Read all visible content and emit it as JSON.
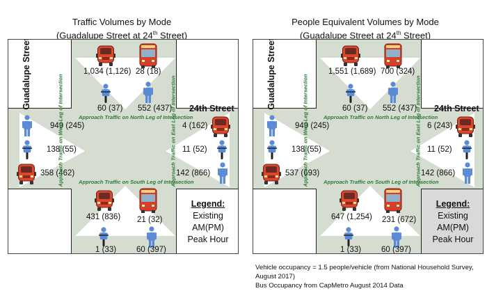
{
  "left_panel": {
    "title": "Traffic Volumes by Mode",
    "subtitle_pre": "(Guadalupe Street at 24",
    "subtitle_sup": "th",
    "subtitle_post": " Street)",
    "street_ns": "Guadalupe Street",
    "street_ew": "24th Street",
    "north": {
      "car": "1,034 (1,126)",
      "bus": "28 (18)",
      "bike": "60 (37)",
      "ped": "552 (437)"
    },
    "west": {
      "ped": "949 (245)",
      "bike": "138 (55)",
      "car": "358 (462)"
    },
    "east": {
      "car": "4 (162)",
      "bike": "11 (52)",
      "ped": "142 (866)"
    },
    "south": {
      "car": "431 (836)",
      "bus": "21 (32)",
      "bike": "1 (33)",
      "ped": "60 (397)"
    },
    "approach_north": "Approach Traffic on North Leg of Intersection",
    "approach_south": "Approach Traffic on South Leg of Intersection",
    "approach_west": "Approach Traffic on West Leg of Intersection",
    "approach_east": "Approach Traffic on East Leg of Intersection",
    "legend": {
      "title": "Legend:",
      "l1": "Existing",
      "l2": "AM(PM)",
      "l3": "Peak Hour"
    }
  },
  "right_panel": {
    "title": "People Equivalent Volumes by Mode",
    "subtitle_pre": "(Guadalupe Street at 24",
    "subtitle_sup": "th",
    "subtitle_post": " Street)",
    "street_ns": "Guadalupe Street",
    "street_ew": "24th Street",
    "north": {
      "car": "1,551 (1,689)",
      "bus": "700 (324)",
      "bike": "60 (37)",
      "ped": "552 (437)"
    },
    "west": {
      "ped": "949 (245)",
      "bike": "138 (55)",
      "car": "537 (693)"
    },
    "east": {
      "car": "6 (243)",
      "bike": "11 (52)",
      "ped": "142 (866)"
    },
    "south": {
      "car": "647 (1,254)",
      "bus": "231 (672)",
      "bike": "1 (33)",
      "ped": "60 (397)"
    },
    "approach_north": "Approach Traffic on North Leg of Intersection",
    "approach_south": "Approach Traffic on South Leg of Intersection",
    "approach_west": "Approach Traffic on West Leg of Intersection",
    "approach_east": "Approach Traffic on East Leg of Intersection",
    "legend": {
      "title": "Legend:",
      "l1": "Existing",
      "l2": "AM(PM)",
      "l3": "Peak Hour"
    }
  },
  "notes": {
    "line1": "Vehicle occupancy = 1.5 people/vehicle (from National Household Survey, August 2017)",
    "line2": "Bus Occupancy from CapMetro August 2014 Data"
  },
  "colors": {
    "road": "#d5ddd1",
    "car": "#d9472e",
    "bus": "#d5402c",
    "person": "#5b8bd6",
    "approach": "#2f7a3a",
    "legend_fill": "#d9d9d9"
  }
}
